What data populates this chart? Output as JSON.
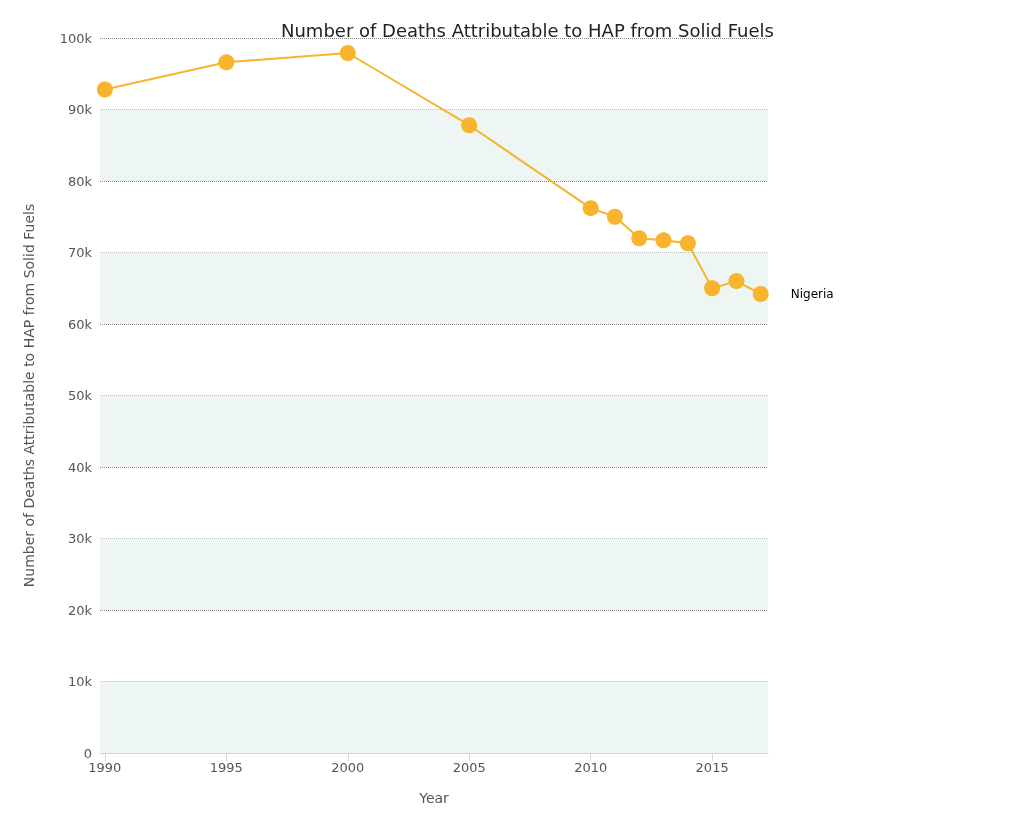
{
  "chart_data": {
    "type": "line",
    "title": "Number of Deaths Attributable to HAP from Solid Fuels",
    "xlabel": "Year",
    "ylabel": "Number of Deaths Attributable to HAP from Solid Fuels",
    "x": [
      1990,
      1995,
      2000,
      2005,
      2010,
      2011,
      2012,
      2013,
      2014,
      2015,
      2016,
      2017
    ],
    "series": [
      {
        "name": "Nigeria",
        "color": "#f7b42c",
        "values": [
          92800,
          96600,
          97900,
          87800,
          76200,
          75000,
          72000,
          71700,
          71300,
          65000,
          66000,
          64200
        ]
      }
    ],
    "xlim": [
      1989.8,
      2017.3
    ],
    "xticks": [
      1990,
      1995,
      2000,
      2005,
      2010,
      2015
    ],
    "ylim": [
      0,
      100000
    ],
    "yticks": [
      0,
      {
        "value": 10000,
        "label": "10k"
      },
      {
        "value": 20000,
        "label": "20k"
      },
      {
        "value": 30000,
        "label": "30k"
      },
      {
        "value": 40000,
        "label": "40k"
      },
      {
        "value": 50000,
        "label": "50k"
      },
      {
        "value": 60000,
        "label": "60k"
      },
      {
        "value": 70000,
        "label": "70k"
      },
      {
        "value": 80000,
        "label": "80k"
      },
      {
        "value": 90000,
        "label": "90k"
      },
      {
        "value": 100000,
        "label": "100k"
      }
    ],
    "bands": [
      {
        "axis": "y",
        "from": 0,
        "to": 10000,
        "color": "#eef6f4"
      },
      {
        "axis": "y",
        "from": 20000,
        "to": 30000,
        "color": "#eef6f4"
      },
      {
        "axis": "y",
        "from": 40000,
        "to": 50000,
        "color": "#eef6f4"
      },
      {
        "axis": "y",
        "from": 60000,
        "to": 70000,
        "color": "#eef6f4"
      },
      {
        "axis": "y",
        "from": 80000,
        "to": 90000,
        "color": "#eef6f4"
      }
    ],
    "grid": "y",
    "legend": false,
    "marker": "circle",
    "line_style": "solid"
  }
}
